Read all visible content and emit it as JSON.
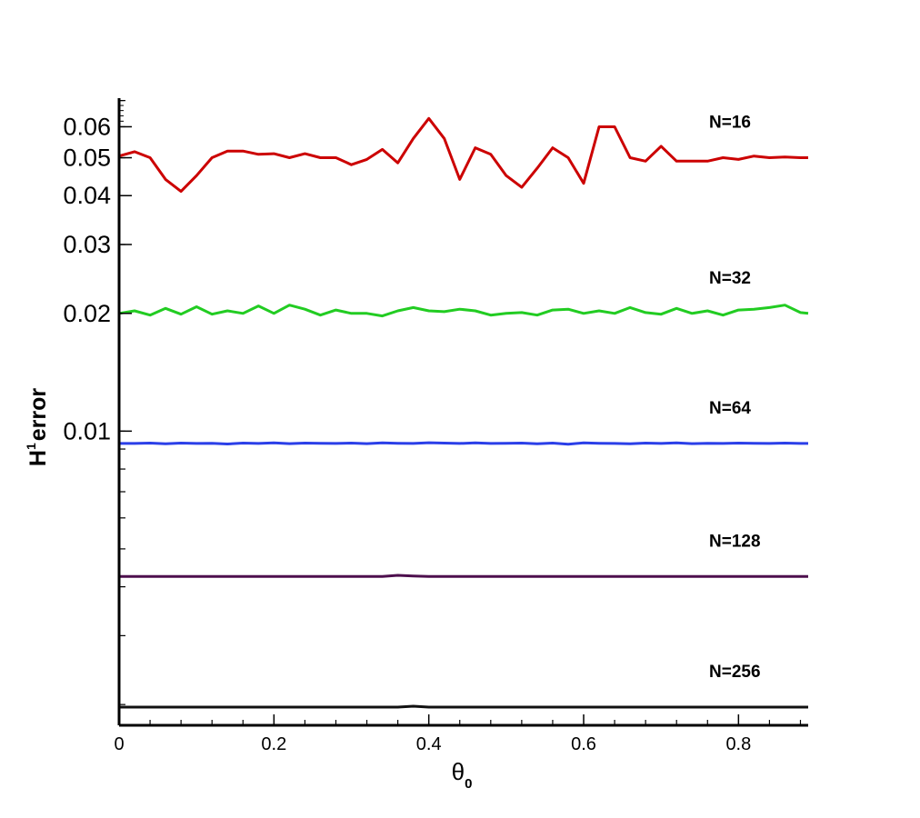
{
  "chart_data": {
    "type": "line",
    "title": "",
    "xlabel": {
      "main": "θ",
      "sub": "0"
    },
    "ylabel": {
      "main": "H",
      "sup": "1",
      "rest": "error"
    },
    "xlim": [
      0,
      0.89
    ],
    "ylim": [
      0.00177,
      0.071
    ],
    "yscale": "log",
    "grid": false,
    "legend": "none",
    "x_ticks": [
      "0",
      "0.2",
      "0.4",
      "0.6",
      "0.8"
    ],
    "y_ticks": [
      "0.01",
      "0.02",
      "0.03",
      "0.04",
      "0.05",
      "0.06"
    ],
    "x": [
      0.0,
      0.02,
      0.04,
      0.06,
      0.08,
      0.1,
      0.12,
      0.14,
      0.16,
      0.18,
      0.2,
      0.22,
      0.24,
      0.26,
      0.28,
      0.3,
      0.32,
      0.34,
      0.36,
      0.38,
      0.4,
      0.42,
      0.44,
      0.46,
      0.48,
      0.5,
      0.52,
      0.54,
      0.56,
      0.58,
      0.6,
      0.62,
      0.64,
      0.66,
      0.68,
      0.7,
      0.72,
      0.74,
      0.76,
      0.78,
      0.8,
      0.82,
      0.84,
      0.86,
      0.88,
      0.89
    ],
    "series": [
      {
        "name": "N=16",
        "color": "#cc0000",
        "values": [
          0.0505,
          0.0518,
          0.05,
          0.044,
          0.041,
          0.045,
          0.05,
          0.052,
          0.052,
          0.051,
          0.0512,
          0.05,
          0.0512,
          0.05,
          0.05,
          0.048,
          0.0495,
          0.0525,
          0.0485,
          0.056,
          0.063,
          0.056,
          0.044,
          0.053,
          0.051,
          0.045,
          0.042,
          0.047,
          0.053,
          0.05,
          0.043,
          0.06,
          0.06,
          0.05,
          0.049,
          0.0535,
          0.049,
          0.049,
          0.049,
          0.05,
          0.0495,
          0.0505,
          0.05,
          0.0502,
          0.05,
          0.05
        ]
      },
      {
        "name": "N=32",
        "color": "#22cc22",
        "values": [
          0.02,
          0.0203,
          0.0198,
          0.0206,
          0.0199,
          0.0208,
          0.0199,
          0.0203,
          0.02,
          0.0209,
          0.02,
          0.021,
          0.0205,
          0.0198,
          0.0204,
          0.02,
          0.02,
          0.0197,
          0.0203,
          0.0207,
          0.0203,
          0.0202,
          0.0205,
          0.0203,
          0.0198,
          0.02,
          0.0201,
          0.0198,
          0.0204,
          0.0205,
          0.02,
          0.0203,
          0.02,
          0.0207,
          0.0201,
          0.0199,
          0.0206,
          0.02,
          0.0203,
          0.0198,
          0.0204,
          0.0205,
          0.0207,
          0.021,
          0.0201,
          0.02
        ]
      },
      {
        "name": "N=64",
        "color": "#2b3fe8",
        "values": [
          0.0093,
          0.0093,
          0.00932,
          0.00928,
          0.00932,
          0.0093,
          0.00931,
          0.00927,
          0.00932,
          0.0093,
          0.00933,
          0.00929,
          0.00932,
          0.00931,
          0.0093,
          0.00932,
          0.00929,
          0.00933,
          0.00931,
          0.0093,
          0.00934,
          0.00932,
          0.0093,
          0.00933,
          0.0093,
          0.00931,
          0.00932,
          0.00928,
          0.00932,
          0.00926,
          0.00933,
          0.00931,
          0.0093,
          0.00928,
          0.00932,
          0.0093,
          0.00933,
          0.00929,
          0.00931,
          0.0093,
          0.00932,
          0.00931,
          0.0093,
          0.00932,
          0.0093,
          0.0093
        ]
      },
      {
        "name": "N=128",
        "color": "#4d0f4d",
        "values": [
          0.00425,
          0.00425,
          0.00425,
          0.00425,
          0.00425,
          0.00425,
          0.00425,
          0.00425,
          0.00425,
          0.00425,
          0.00425,
          0.00425,
          0.00425,
          0.00425,
          0.00425,
          0.00425,
          0.00425,
          0.00425,
          0.00428,
          0.00426,
          0.00425,
          0.00425,
          0.00425,
          0.00425,
          0.00425,
          0.00425,
          0.00425,
          0.00425,
          0.00425,
          0.00425,
          0.00425,
          0.00425,
          0.00425,
          0.00425,
          0.00425,
          0.00425,
          0.00425,
          0.00425,
          0.00425,
          0.00425,
          0.00425,
          0.00425,
          0.00425,
          0.00425,
          0.00425,
          0.00425
        ]
      },
      {
        "name": "N=256",
        "color": "#111111",
        "values": [
          0.00197,
          0.00197,
          0.00197,
          0.00197,
          0.00197,
          0.00197,
          0.00197,
          0.00197,
          0.00197,
          0.00197,
          0.00197,
          0.00197,
          0.00197,
          0.00197,
          0.00197,
          0.00197,
          0.00197,
          0.00197,
          0.00197,
          0.00198,
          0.00197,
          0.00197,
          0.00197,
          0.00197,
          0.00197,
          0.00197,
          0.00197,
          0.00197,
          0.00197,
          0.00197,
          0.00197,
          0.00197,
          0.00197,
          0.00197,
          0.00197,
          0.00197,
          0.00197,
          0.00197,
          0.00197,
          0.00197,
          0.00197,
          0.00197,
          0.00197,
          0.00197,
          0.00197,
          0.00197
        ]
      }
    ]
  }
}
